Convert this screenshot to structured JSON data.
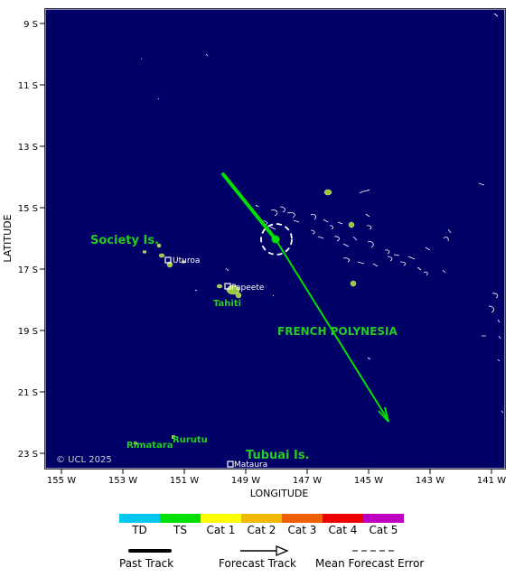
{
  "map": {
    "lat_labels": [
      "9 S",
      "11 S",
      "13 S",
      "15 S",
      "17 S",
      "19 S",
      "21 S",
      "23 S"
    ],
    "lon_labels": [
      "155 W",
      "153 W",
      "151 W",
      "149 W",
      "147 W",
      "145 W",
      "143 W",
      "141 W"
    ],
    "xlabel": "LONGITUDE",
    "ylabel": "LATITUDE",
    "region_labels": {
      "society": "Society Is.",
      "tahiti": "Tahiti",
      "french_polynesia": "FRENCH POLYNESIA",
      "tubuai": "Tubuai Is.",
      "rimatara": "Rimatara",
      "rurutu": "Rurutu"
    },
    "place_labels": {
      "uturoa": "Uturoa",
      "papeete": "Papeete",
      "mataura": "Mataura"
    },
    "copyright": "© UCL 2025",
    "colors": {
      "ocean": "#000066",
      "land": "#97c93e",
      "track_ts": "#00e000",
      "label_green": "#22cc22",
      "frame": "#ffffff"
    }
  },
  "legend": {
    "categories": [
      {
        "label": "TD",
        "color": "#00c8f0"
      },
      {
        "label": "TS",
        "color": "#00e000"
      },
      {
        "label": "Cat 1",
        "color": "#ffff00"
      },
      {
        "label": "Cat 2",
        "color": "#f2b800"
      },
      {
        "label": "Cat 3",
        "color": "#f06000"
      },
      {
        "label": "Cat 4",
        "color": "#ee0000"
      },
      {
        "label": "Cat 5",
        "color": "#c000c0"
      }
    ],
    "past_track": "Past Track",
    "forecast_track": "Forecast Track",
    "mean_error": "Mean Forecast Error"
  }
}
